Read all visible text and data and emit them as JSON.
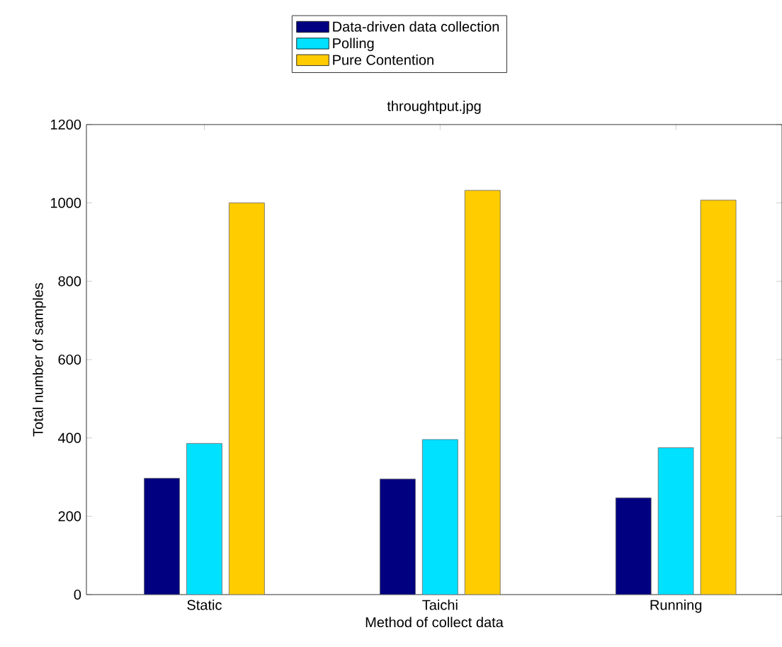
{
  "chart_data": {
    "type": "bar",
    "title": "throughtput.jpg",
    "xlabel": "Method of collect data",
    "ylabel": "Total number of samples",
    "categories": [
      "Static",
      "Taichi",
      "Running"
    ],
    "series": [
      {
        "name": "Data-driven data collection",
        "color": "#000080",
        "values": [
          297,
          295,
          247
        ]
      },
      {
        "name": "Polling",
        "color": "#00e0ff",
        "values": [
          386,
          396,
          375
        ]
      },
      {
        "name": "Pure Contention",
        "color": "#ffcc00",
        "values": [
          1000,
          1032,
          1007
        ]
      }
    ],
    "ylim": [
      0,
      1200
    ],
    "yticks": [
      0,
      200,
      400,
      600,
      800,
      1000,
      1200
    ],
    "legend": "top",
    "grid": false
  }
}
